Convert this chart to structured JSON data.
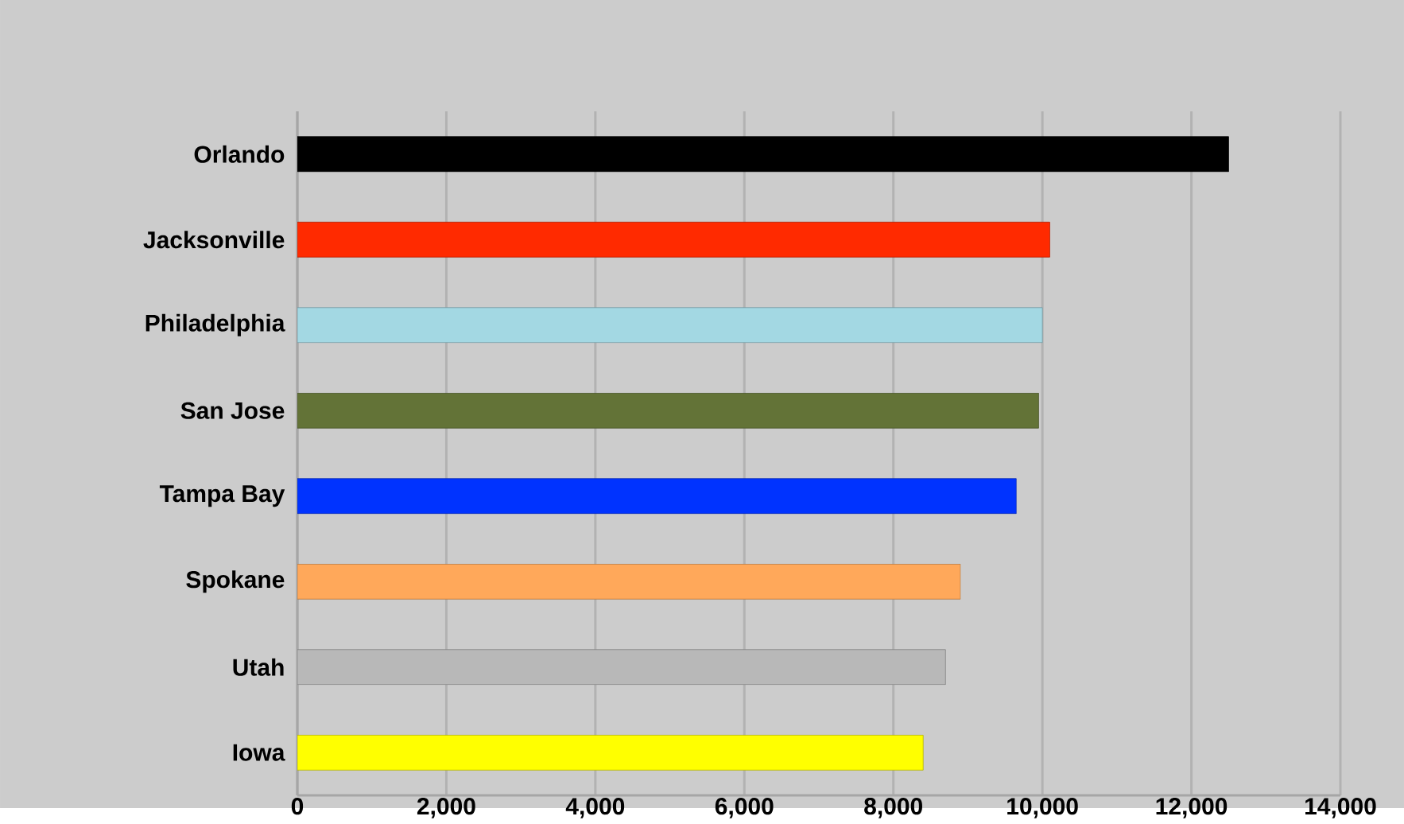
{
  "chart_data": {
    "type": "bar",
    "orientation": "horizontal",
    "categories": [
      "Orlando",
      "Jacksonville",
      "Philadelphia",
      "San Jose",
      "Tampa Bay",
      "Spokane",
      "Utah",
      "Iowa"
    ],
    "values": [
      12500,
      10100,
      10000,
      9950,
      9650,
      8900,
      8700,
      8400
    ],
    "colors": [
      "#000000",
      "#ff2a00",
      "#a3d8e3",
      "#637337",
      "#0033ff",
      "#ffa85a",
      "#b8b8b8",
      "#ffff00"
    ],
    "xlim": [
      0,
      14000
    ],
    "xticks": [
      {
        "value": 0,
        "label": "0"
      },
      {
        "value": 2000,
        "label": "2,000"
      },
      {
        "value": 4000,
        "label": "4,000"
      },
      {
        "value": 6000,
        "label": "6,000"
      },
      {
        "value": 8000,
        "label": "8,000"
      },
      {
        "value": 10000,
        "label": "10,000"
      },
      {
        "value": 12000,
        "label": "12,000"
      },
      {
        "value": 14000,
        "label": "14,000"
      }
    ],
    "grid": "x"
  }
}
